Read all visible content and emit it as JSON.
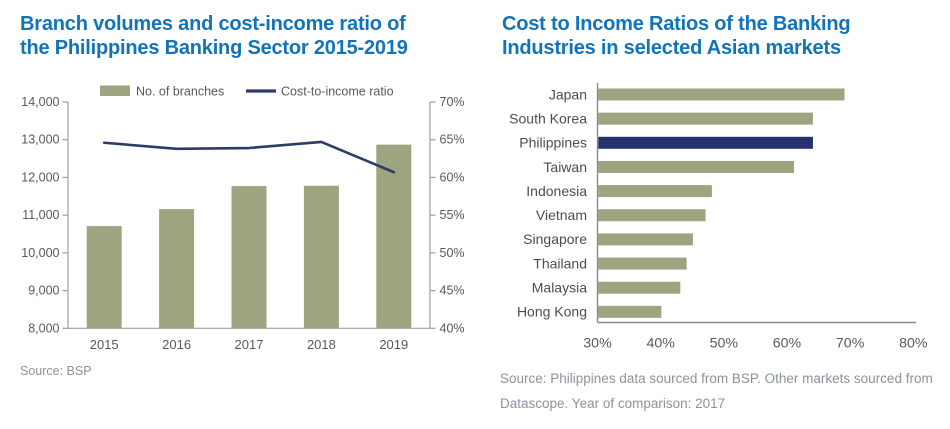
{
  "colors": {
    "title_blue": "#1373B9",
    "olive_bar": "#9CA480",
    "navy_line": "#2E3A69",
    "navy_highlight_bar": "#26316E",
    "left_axis_line": "#9E9E9E",
    "right_axis_line": "#8A8A8A",
    "tick_text": "#595959",
    "category_text": "#4D4D4D",
    "source_text": "#8A939C"
  },
  "left_chart": {
    "title_lines": [
      "Branch volumes and cost-income ratio of",
      "the Philippines Banking Sector 2015-2019"
    ],
    "source": "Source: BSP"
  },
  "right_chart": {
    "title_lines": [
      "Cost to Income Ratios of the Banking",
      "Industries in selected Asian markets"
    ],
    "source_lines": [
      "Source: Philippines data sourced from BSP. Other markets sourced from",
      "Datascope. Year of comparison: 2017"
    ]
  },
  "chart_data": [
    {
      "type": "bar",
      "subtype": "combo-bar-line-dual-axis",
      "title": "Branch volumes and cost-income ratio of the Philippines Banking Sector 2015-2019",
      "categories": [
        "2015",
        "2016",
        "2017",
        "2018",
        "2019"
      ],
      "series": [
        {
          "name": "No. of branches",
          "kind": "bar",
          "axis": "left",
          "values": [
            10710,
            11160,
            11770,
            11780,
            12870
          ]
        },
        {
          "name": "Cost-to-income ratio",
          "kind": "line",
          "axis": "right",
          "values": [
            64.6,
            63.8,
            63.9,
            64.7,
            60.7
          ]
        }
      ],
      "left_axis": {
        "min": 8000,
        "max": 14000,
        "step": 1000,
        "ticks": [
          "14,000",
          "13,000",
          "12,000",
          "11,000",
          "10,000",
          "9,000",
          "8,000"
        ]
      },
      "right_axis": {
        "min": 40,
        "max": 70,
        "step": 5,
        "ticks": [
          "70%",
          "65%",
          "60%",
          "55%",
          "50%",
          "45%",
          "40%"
        ]
      },
      "legend_position": "top",
      "grid": false,
      "source": "Source: BSP"
    },
    {
      "type": "bar",
      "orientation": "horizontal",
      "title": "Cost to Income Ratios of the Banking Industries in selected Asian markets",
      "categories": [
        "Japan",
        "South Korea",
        "Philippines",
        "Taiwan",
        "Indonesia",
        "Vietnam",
        "Singapore",
        "Thailand",
        "Malaysia",
        "Hong Kong"
      ],
      "values": [
        69,
        64,
        64,
        61,
        48,
        47,
        45,
        44,
        43,
        40
      ],
      "highlight_category": "Philippines",
      "xlim": [
        30,
        80
      ],
      "x_ticks": [
        "30%",
        "40%",
        "50%",
        "60%",
        "70%",
        "80%"
      ],
      "grid": false,
      "legend_position": "none",
      "source": "Source: Philippines data sourced from BSP. Other markets sourced from Datascope. Year of comparison: 2017"
    }
  ]
}
